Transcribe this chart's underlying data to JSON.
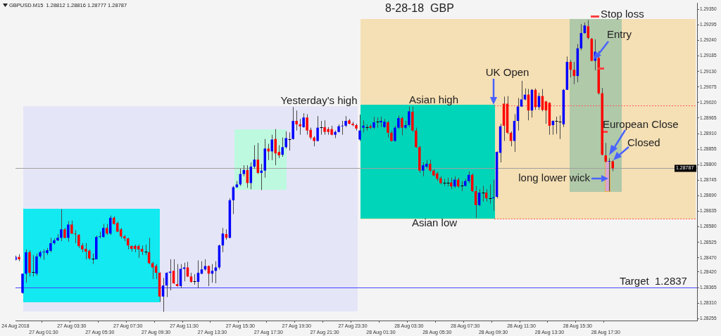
{
  "chart_data": {
    "type": "candlestick",
    "title": "8-28-18  GBP",
    "subtitle": "GBPUSD.M15  1.28812 1.28816 1.28777 1.28787",
    "annotations": [
      "Yesterday's high",
      "Asian high",
      "Asian low",
      {
        "text": "UK Open",
        "x": "28 Aug 09:30",
        "y": 1.2901
      },
      "Stop loss",
      "Entry",
      "European Close",
      "Closed",
      "long lower wick"
    ],
    "categories": [
      "24 Aug 2018",
      null,
      null,
      null,
      null,
      null,
      null,
      null,
      "27 Aug 01:30",
      null,
      null,
      null,
      null,
      null,
      null,
      null,
      "27 Aug 03:30",
      null,
      null,
      null,
      null,
      null,
      null,
      null,
      "27 Aug 05:30",
      null,
      null,
      null,
      null,
      null,
      null,
      null,
      "27 Aug 07:30",
      null,
      null,
      null,
      null,
      null,
      null,
      null,
      "27 Aug 09:30",
      null,
      null,
      null,
      null,
      null,
      null,
      null,
      "27 Aug 11:30",
      null,
      null,
      null,
      null,
      null,
      null,
      null,
      "27 Aug 13:30",
      null,
      null,
      null,
      null,
      null,
      null,
      null,
      "27 Aug 15:30",
      null,
      null,
      null,
      null,
      null,
      null,
      null,
      "27 Aug 17:30",
      null,
      null,
      null,
      null,
      null,
      null,
      null,
      "27 Aug 19:30",
      null,
      null,
      null,
      null,
      null,
      null,
      null,
      "27 Aug 21:30",
      null,
      null,
      null,
      null,
      null,
      null,
      null,
      "27 Aug 23:30",
      null,
      null,
      null,
      null,
      null,
      null,
      null,
      "28 Aug 01:30",
      null,
      null,
      null,
      null,
      null,
      null,
      null,
      "28 Aug 03:30",
      null,
      null,
      null,
      null,
      null,
      null,
      null,
      "28 Aug 05:30",
      null,
      null,
      null,
      null,
      null,
      null,
      null,
      "28 Aug 07:30",
      null,
      null,
      null,
      null,
      null,
      null,
      null,
      "28 Aug 09:30",
      null,
      null,
      null,
      null,
      null,
      null,
      null,
      "28 Aug 11:30",
      null,
      null,
      null,
      null,
      null,
      null,
      null,
      "28 Aug 13:30",
      null,
      null,
      null,
      null,
      null,
      null,
      null,
      "28 Aug 15:30",
      null,
      null,
      null,
      null,
      null,
      null,
      null,
      "28 Aug 17:30",
      null,
      null,
      null,
      null,
      null,
      null,
      null,
      null,
      null,
      null,
      null,
      null,
      null,
      null,
      null,
      null,
      null,
      null,
      null,
      null,
      null,
      null,
      null,
      null,
      null,
      null
    ],
    "ohlc": [
      [
        1.28463,
        1.28478,
        1.28461,
        1.28473
      ],
      [
        1.28473,
        1.28483,
        1.28458,
        1.28465
      ],
      [
        1.28346,
        1.28414,
        1.28343,
        1.28414
      ],
      [
        1.28414,
        1.285,
        1.28382,
        1.2849
      ],
      [
        1.2849,
        1.28497,
        1.28404,
        1.28417
      ],
      [
        1.28419,
        1.2848,
        1.28404,
        1.28419
      ],
      [
        1.28414,
        1.28485,
        1.28407,
        1.28475
      ],
      [
        1.28475,
        1.28495,
        1.28468,
        1.2849
      ],
      [
        1.2849,
        1.285,
        1.28463,
        1.28492
      ],
      [
        1.28487,
        1.28505,
        1.2848,
        1.28497
      ],
      [
        1.28495,
        1.28541,
        1.2849,
        1.28522
      ],
      [
        1.28522,
        1.28539,
        1.28517,
        1.28532
      ],
      [
        1.28532,
        1.28554,
        1.28529,
        1.28541
      ],
      [
        1.28541,
        1.28642,
        1.28529,
        1.28571
      ],
      [
        1.28571,
        1.28576,
        1.28539,
        1.28541
      ],
      [
        1.28541,
        1.286,
        1.28527,
        1.28588
      ],
      [
        1.28588,
        1.28602,
        1.28554,
        1.28556
      ],
      [
        1.28556,
        1.28568,
        1.28522,
        1.28554
      ],
      [
        1.28551,
        1.28554,
        1.28505,
        1.28512
      ],
      [
        1.28514,
        1.28522,
        1.2849,
        1.285
      ],
      [
        1.28502,
        1.28522,
        1.28465,
        1.28492
      ],
      [
        1.28495,
        1.285,
        1.28463,
        1.28468
      ],
      [
        1.28468,
        1.28485,
        1.28448,
        1.28468
      ],
      [
        1.28465,
        1.28549,
        1.28465,
        1.28544
      ],
      [
        1.28544,
        1.28563,
        1.28539,
        1.28546
      ],
      [
        1.28544,
        1.2859,
        1.28541,
        1.28576
      ],
      [
        1.28576,
        1.2859,
        1.28551,
        1.28556
      ],
      [
        1.28556,
        1.2862,
        1.28551,
        1.28612
      ],
      [
        1.28612,
        1.28617,
        1.28588,
        1.2859
      ],
      [
        1.28593,
        1.28598,
        1.28561,
        1.28563
      ],
      [
        1.28571,
        1.28576,
        1.28539,
        1.28546
      ],
      [
        1.28546,
        1.28551,
        1.28529,
        1.28539
      ],
      [
        1.28539,
        1.28541,
        1.285,
        1.28514
      ],
      [
        1.28512,
        1.28514,
        1.28492,
        1.28502
      ],
      [
        1.28512,
        1.28517,
        1.2849,
        1.28502
      ],
      [
        1.28512,
        1.28517,
        1.2847,
        1.285
      ],
      [
        1.28502,
        1.28514,
        1.2848,
        1.28492
      ],
      [
        1.28492,
        1.28517,
        1.2848,
        1.28492
      ],
      [
        1.2849,
        1.28541,
        1.28448,
        1.28451
      ],
      [
        1.28451,
        1.28456,
        1.28395,
        1.28436
      ],
      [
        1.28441,
        1.28448,
        1.28395,
        1.28417
      ],
      [
        1.28417,
        1.28419,
        1.28314,
        1.28333
      ],
      [
        1.28333,
        1.28399,
        1.28279,
        1.28372
      ],
      [
        1.28372,
        1.28419,
        1.28331,
        1.28417
      ],
      [
        1.28417,
        1.28465,
        1.28355,
        1.28421
      ],
      [
        1.28424,
        1.28465,
        1.28377,
        1.2838
      ],
      [
        1.28377,
        1.28448,
        1.28368,
        1.2837
      ],
      [
        1.2837,
        1.28448,
        1.28363,
        1.28431
      ],
      [
        1.28431,
        1.28453,
        1.28387,
        1.28436
      ],
      [
        1.28436,
        1.28456,
        1.28402,
        1.28404
      ],
      [
        1.28404,
        1.28417,
        1.28382,
        1.28385
      ],
      [
        1.28387,
        1.28412,
        1.28375,
        1.28387
      ],
      [
        1.28385,
        1.28461,
        1.28363,
        1.28417
      ],
      [
        1.28414,
        1.28458,
        1.28412,
        1.28429
      ],
      [
        1.28429,
        1.28465,
        1.28424,
        1.28441
      ],
      [
        1.28441,
        1.28443,
        1.2837,
        1.28414
      ],
      [
        1.28414,
        1.28448,
        1.28382,
        1.28424
      ],
      [
        1.28424,
        1.28458,
        1.2838,
        1.28436
      ],
      [
        1.28436,
        1.28517,
        1.28429,
        1.28514
      ],
      [
        1.28514,
        1.28576,
        1.2849,
        1.28556
      ],
      [
        1.28554,
        1.28571,
        1.28534,
        1.28541
      ],
      [
        1.28541,
        1.28681,
        1.28539,
        1.28674
      ],
      [
        1.28674,
        1.28725,
        1.28625,
        1.2872
      ],
      [
        1.2872,
        1.28742,
        1.28718,
        1.2873
      ],
      [
        1.2873,
        1.28786,
        1.28725,
        1.28767
      ],
      [
        1.28767,
        1.28798,
        1.28759,
        1.28781
      ],
      [
        1.28781,
        1.28798,
        1.28718,
        1.28735
      ],
      [
        1.28735,
        1.28808,
        1.28713,
        1.28793
      ],
      [
        1.28793,
        1.28869,
        1.28786,
        1.28818
      ],
      [
        1.28818,
        1.28877,
        1.28767,
        1.28771
      ],
      [
        1.28771,
        1.28803,
        1.2871,
        1.28779
      ],
      [
        1.28779,
        1.28891,
        1.28754,
        1.28857
      ],
      [
        1.28857,
        1.28874,
        1.28816,
        1.28847
      ],
      [
        1.28847,
        1.28906,
        1.28816,
        1.28889
      ],
      [
        1.28891,
        1.28926,
        1.28798,
        1.2884
      ],
      [
        1.28845,
        1.28869,
        1.28823,
        1.28833
      ],
      [
        1.28835,
        1.28896,
        1.28828,
        1.28862
      ],
      [
        1.28862,
        1.28918,
        1.28857,
        1.28894
      ],
      [
        1.28891,
        1.28914,
        1.2885,
        1.28891
      ],
      [
        1.28891,
        1.29004,
        1.28889,
        1.28955
      ],
      [
        1.28955,
        1.28992,
        1.28921,
        1.28943
      ],
      [
        1.28943,
        1.28962,
        1.28906,
        1.28936
      ],
      [
        1.28933,
        1.28982,
        1.28931,
        1.28967
      ],
      [
        1.28967,
        1.28979,
        1.28906,
        1.28921
      ],
      [
        1.28923,
        1.28931,
        1.28889,
        1.28896
      ],
      [
        1.28896,
        1.28901,
        1.28865,
        1.28884
      ],
      [
        1.28884,
        1.28972,
        1.28882,
        1.28931
      ],
      [
        1.28933,
        1.28955,
        1.28906,
        1.28933
      ],
      [
        1.28933,
        1.28957,
        1.28906,
        1.28916
      ],
      [
        1.28926,
        1.28933,
        1.28906,
        1.28916
      ],
      [
        1.28926,
        1.28938,
        1.28904,
        1.28906
      ],
      [
        1.28906,
        1.28921,
        1.28894,
        1.28916
      ],
      [
        1.28916,
        1.28943,
        1.28914,
        1.28936
      ],
      [
        1.28936,
        1.28955,
        1.28906,
        1.28938
      ],
      [
        1.28938,
        1.28972,
        1.28933,
        1.28955
      ],
      [
        1.28957,
        1.28962,
        1.28943,
        1.28945
      ],
      [
        1.28945,
        1.28952,
        1.28936,
        1.2894
      ],
      [
        1.2894,
        1.28945,
        1.28921,
        1.28928
      ],
      [
        1.28889,
        1.28977,
        1.28884,
        1.28921
      ],
      [
        1.28931,
        1.28957,
        1.28914,
        1.28938
      ],
      [
        1.28933,
        1.28943,
        1.28921,
        1.28933
      ],
      [
        1.28936,
        1.28943,
        1.28926,
        1.28931
      ],
      [
        1.28931,
        1.2897,
        1.28926,
        1.2895
      ],
      [
        1.28952,
        1.28967,
        1.28931,
        1.28952
      ],
      [
        1.2895,
        1.2897,
        1.28933,
        1.28955
      ],
      [
        1.28933,
        1.28962,
        1.28931,
        1.28952
      ],
      [
        1.2895,
        1.28955,
        1.28896,
        1.28913
      ],
      [
        1.28913,
        1.28921,
        1.28882,
        1.28884
      ],
      [
        1.28884,
        1.28938,
        1.28882,
        1.28931
      ],
      [
        1.28931,
        1.28974,
        1.28926,
        1.28965
      ],
      [
        1.28965,
        1.2897,
        1.28904,
        1.28931
      ],
      [
        1.28931,
        1.28955,
        1.28926,
        1.2894
      ],
      [
        1.2894,
        1.29006,
        1.28933,
        1.28989
      ],
      [
        1.28987,
        1.29006,
        1.28916,
        1.28921
      ],
      [
        1.28921,
        1.28931,
        1.2886,
        1.28862
      ],
      [
        1.28862,
        1.28867,
        1.28771,
        1.28779
      ],
      [
        1.28779,
        1.28808,
        1.28759,
        1.28798
      ],
      [
        1.28793,
        1.28816,
        1.28786,
        1.28803
      ],
      [
        1.28803,
        1.28818,
        1.28774,
        1.28779
      ],
      [
        1.28779,
        1.28784,
        1.28759,
        1.28762
      ],
      [
        1.28769,
        1.28774,
        1.28742,
        1.2875
      ],
      [
        1.28752,
        1.28759,
        1.2873,
        1.28735
      ],
      [
        1.28735,
        1.2875,
        1.28725,
        1.28735
      ],
      [
        1.28737,
        1.28754,
        1.28723,
        1.28737
      ],
      [
        1.28737,
        1.28754,
        1.28713,
        1.28723
      ],
      [
        1.28723,
        1.28759,
        1.28718,
        1.28747
      ],
      [
        1.28747,
        1.28754,
        1.28718,
        1.28723
      ],
      [
        1.28725,
        1.28742,
        1.28706,
        1.28725
      ],
      [
        1.28725,
        1.2875,
        1.28723,
        1.28742
      ],
      [
        1.28742,
        1.28776,
        1.28735,
        1.28764
      ],
      [
        1.28764,
        1.28769,
        1.28703,
        1.28706
      ],
      [
        1.28706,
        1.28725,
        1.28612,
        1.28657
      ],
      [
        1.28657,
        1.28713,
        1.28652,
        1.28701
      ],
      [
        1.28701,
        1.28725,
        1.28669,
        1.28701
      ],
      [
        1.28701,
        1.28713,
        1.28669,
        1.28681
      ],
      [
        1.28681,
        1.2873,
        1.28662,
        1.28681
      ],
      [
        1.28681,
        1.28747,
        1.28637,
        1.28684
      ],
      [
        1.28686,
        1.28847,
        1.28681,
        1.28845
      ],
      [
        1.28842,
        1.28945,
        1.28808,
        1.28936
      ],
      [
        1.29016,
        1.29041,
        1.28884,
        1.28938
      ],
      [
        1.29016,
        1.29043,
        1.28909,
        1.28913
      ],
      [
        1.28913,
        1.28918,
        1.28865,
        1.28884
      ],
      [
        1.28884,
        1.28979,
        1.28845,
        1.28955
      ],
      [
        1.28955,
        1.29036,
        1.28921,
        1.29006
      ],
      [
        1.29006,
        1.29097,
        1.29004,
        1.29031
      ],
      [
        1.29031,
        1.2907,
        1.29028,
        1.29048
      ],
      [
        1.29048,
        1.29068,
        1.28957,
        1.28992
      ],
      [
        1.28992,
        1.29068,
        1.28967,
        1.29065
      ],
      [
        1.29065,
        1.2907,
        1.28994,
        1.29004
      ],
      [
        1.29004,
        1.29055,
        1.28994,
        1.29043
      ],
      [
        1.29043,
        1.29068,
        1.28989,
        1.28994
      ],
      [
        1.29024,
        1.29026,
        1.28945,
        1.28992
      ],
      [
        1.29019,
        1.29021,
        1.28906,
        1.28938
      ],
      [
        1.2894,
        1.28957,
        1.28906,
        1.28955
      ],
      [
        1.28955,
        1.2897,
        1.28909,
        1.28955
      ],
      [
        1.28952,
        1.28974,
        1.28891,
        1.28952
      ],
      [
        1.28943,
        1.29068,
        1.28933,
        1.29065
      ],
      [
        1.29065,
        1.29183,
        1.29065,
        1.29164
      ],
      [
        1.29164,
        1.29171,
        1.29109,
        1.29136
      ],
      [
        1.29136,
        1.29164,
        1.29085,
        1.29114
      ],
      [
        1.29114,
        1.29227,
        1.29092,
        1.29212
      ],
      [
        1.29212,
        1.29298,
        1.29205,
        1.29266
      ],
      [
        1.29266,
        1.29303,
        1.29264,
        1.29293
      ],
      [
        1.2929,
        1.29312,
        1.29244,
        1.29249
      ],
      [
        1.29246,
        1.29249,
        1.29166,
        1.29168
      ],
      [
        1.29168,
        1.29244,
        1.29134,
        1.292
      ],
      [
        1.29178,
        1.29203,
        1.29048,
        1.29053
      ],
      [
        1.29053,
        1.29072,
        1.28833,
        1.28835
      ],
      [
        1.28833,
        1.28877,
        1.28808,
        1.28811
      ],
      [
        1.28811,
        1.28823,
        1.28706,
        1.28813
      ],
      [
        1.28812,
        1.28816,
        1.28777,
        1.28787
      ],
      null,
      null,
      null,
      null,
      null,
      null,
      null,
      null,
      null,
      null,
      null,
      null,
      null,
      null,
      null,
      null,
      null,
      null,
      null,
      null,
      null,
      null,
      null,
      null
    ],
    "colors": [
      "#0000ff",
      "#ff0000",
      "#0000ff",
      "#0000ff",
      "#ff0000",
      "#000000",
      "#0000ff",
      "#0000ff",
      "#0000ff",
      "#0000ff",
      "#0000ff",
      "#0000ff",
      "#0000ff",
      "#0000ff",
      "#ff0000",
      "#0000ff",
      "#ff0000",
      "#ff0000",
      "#ff0000",
      "#ff0000",
      "#ff0000",
      "#ff0000",
      "#000000",
      "#0000ff",
      "#0000ff",
      "#0000ff",
      "#ff0000",
      "#0000ff",
      "#ff0000",
      "#ff0000",
      "#ff0000",
      "#ff0000",
      "#ff0000",
      "#ff0000",
      "#ff0000",
      "#ff0000",
      "#ff0000",
      "#000000",
      "#ff0000",
      "#ff0000",
      "#ff0000",
      "#ff0000",
      "#0000ff",
      "#0000ff",
      "#0000ff",
      "#ff0000",
      "#ff0000",
      "#0000ff",
      "#0000ff",
      "#ff0000",
      "#ff0000",
      "#000000",
      "#0000ff",
      "#0000ff",
      "#0000ff",
      "#ff0000",
      "#0000ff",
      "#0000ff",
      "#0000ff",
      "#0000ff",
      "#ff0000",
      "#0000ff",
      "#0000ff",
      "#0000ff",
      "#0000ff",
      "#0000ff",
      "#ff0000",
      "#0000ff",
      "#0000ff",
      "#ff0000",
      "#0000ff",
      "#0000ff",
      "#ff0000",
      "#0000ff",
      "#ff0000",
      "#ff0000",
      "#0000ff",
      "#0000ff",
      "#000000",
      "#0000ff",
      "#ff0000",
      "#ff0000",
      "#0000ff",
      "#ff0000",
      "#ff0000",
      "#ff0000",
      "#0000ff",
      "#000000",
      "#ff0000",
      "#ff0000",
      "#ff0000",
      "#0000ff",
      "#0000ff",
      "#0000ff",
      "#0000ff",
      "#ff0000",
      "#ff0000",
      "#ff0000",
      "#0000ff",
      "#0000ff",
      "#000000",
      "#ff0000",
      "#0000ff",
      "#000000",
      "#0000ff",
      "#0000ff",
      "#ff0000",
      "#ff0000",
      "#0000ff",
      "#0000ff",
      "#ff0000",
      "#0000ff",
      "#0000ff",
      "#ff0000",
      "#ff0000",
      "#ff0000",
      "#0000ff",
      "#0000ff",
      "#ff0000",
      "#ff0000",
      "#ff0000",
      "#ff0000",
      "#000000",
      "#000000",
      "#ff0000",
      "#0000ff",
      "#ff0000",
      "#000000",
      "#0000ff",
      "#0000ff",
      "#ff0000",
      "#ff0000",
      "#0000ff",
      "#000000",
      "#ff0000",
      "#000000",
      "#0000ff",
      "#0000ff",
      "#0000ff",
      "#ff0000",
      "#ff0000",
      "#ff0000",
      "#0000ff",
      "#0000ff",
      "#0000ff",
      "#0000ff",
      "#ff0000",
      "#0000ff",
      "#ff0000",
      "#0000ff",
      "#ff0000",
      "#ff0000",
      "#ff0000",
      "#0000ff",
      "#000000",
      "#000000",
      "#0000ff",
      "#0000ff",
      "#ff0000",
      "#ff0000",
      "#0000ff",
      "#0000ff",
      "#0000ff",
      "#ff0000",
      "#ff0000",
      "#0000ff",
      "#ff0000",
      "#ff0000",
      "#ff0000",
      "#0000ff",
      "#ff0000",
      null,
      null,
      null,
      null,
      null,
      null,
      null,
      null,
      null,
      null,
      null,
      null,
      null,
      null,
      null,
      null,
      null,
      null,
      null,
      null,
      null,
      null,
      null,
      null
    ],
    "ylim": [
      1.28248,
      1.29371
    ],
    "yticks": [
      {
        "value": 1.2935,
        "label": "1.29350"
      },
      1.29295,
      {
        "value": 1.2924,
        "label": "1.29240"
      },
      1.29185,
      {
        "value": 1.2913,
        "label": "1.29130"
      },
      1.29075,
      {
        "value": 1.2902,
        "label": "1.29020"
      },
      1.28965,
      {
        "value": 1.2891,
        "label": "1.28910"
      },
      1.28855,
      {
        "value": 1.288,
        "label": "1.28800"
      },
      1.28745,
      {
        "value": 1.2869,
        "label": "1.28690"
      },
      1.28635,
      {
        "value": 1.2858,
        "label": "1.28580"
      },
      1.28525,
      {
        "value": 1.2847,
        "label": "1.28470"
      },
      {
        "value": 1.2842,
        "label": "1.28420"
      },
      1.28365,
      {
        "value": 1.2831,
        "label": "1.28310"
      },
      1.28255
    ],
    "ref_lines": [
      {
        "axis": "y",
        "value": 1.28787,
        "label": "1.28787",
        "color": "#a0a0a0"
      },
      {
        "axis": "y",
        "value": 1.28365,
        "label": "Target  1.2837",
        "color": "#4646ff"
      },
      {
        "axis": "y",
        "value": 1.2901,
        "color": "#ff5a5a",
        "line_style": "dotted"
      },
      {
        "axis": "y",
        "value": 1.28608,
        "color": "#ff5a5a",
        "line_style": "dotted"
      }
    ]
  }
}
